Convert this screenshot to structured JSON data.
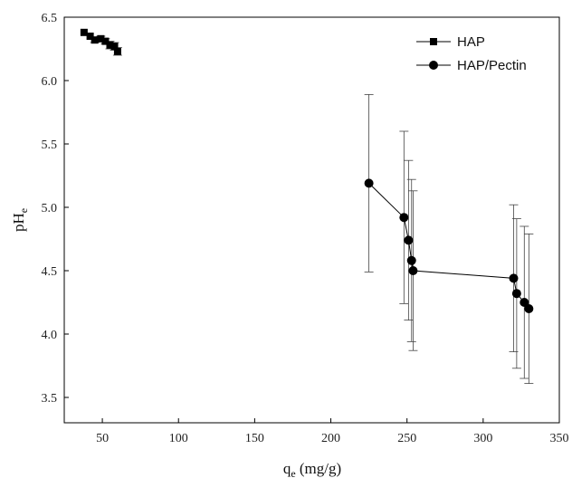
{
  "chart_data": {
    "type": "scatter",
    "xlabel_main": "q",
    "xlabel_sub": "e",
    "xlabel_unit": " (mg/g)",
    "ylabel_main": "pH",
    "ylabel_sub": "e",
    "xlim": [
      25,
      350
    ],
    "ylim": [
      3.3,
      6.5
    ],
    "xticks": [
      50,
      100,
      150,
      200,
      250,
      300,
      350
    ],
    "yticks": [
      3.5,
      4.0,
      4.5,
      5.0,
      5.5,
      6.0,
      6.5
    ],
    "legend_position": "top-right",
    "grid": false,
    "series": [
      {
        "name": "HAP",
        "marker": "square",
        "points": [
          {
            "x": 38.0,
            "y": 6.38,
            "err": 0.0
          },
          {
            "x": 42.0,
            "y": 6.35,
            "err": 0.0
          },
          {
            "x": 45.0,
            "y": 6.32,
            "err": 0.02
          },
          {
            "x": 49.0,
            "y": 6.33,
            "err": 0.02
          },
          {
            "x": 52.0,
            "y": 6.31,
            "err": 0.02
          },
          {
            "x": 55.0,
            "y": 6.28,
            "err": 0.03
          },
          {
            "x": 58.0,
            "y": 6.27,
            "err": 0.03
          },
          {
            "x": 60.0,
            "y": 6.23,
            "err": 0.03
          }
        ]
      },
      {
        "name": "HAP/Pectin",
        "marker": "circle",
        "points": [
          {
            "x": 225.0,
            "y": 5.19,
            "err": 0.7
          },
          {
            "x": 248.0,
            "y": 4.92,
            "err": 0.68
          },
          {
            "x": 251.0,
            "y": 4.74,
            "err": 0.63
          },
          {
            "x": 253.0,
            "y": 4.58,
            "err": 0.64
          },
          {
            "x": 254.0,
            "y": 4.5,
            "err": 0.63
          },
          {
            "x": 320.0,
            "y": 4.44,
            "err": 0.58
          },
          {
            "x": 322.0,
            "y": 4.32,
            "err": 0.59
          },
          {
            "x": 327.0,
            "y": 4.25,
            "err": 0.6
          },
          {
            "x": 330.0,
            "y": 4.2,
            "err": 0.59
          }
        ]
      }
    ]
  }
}
